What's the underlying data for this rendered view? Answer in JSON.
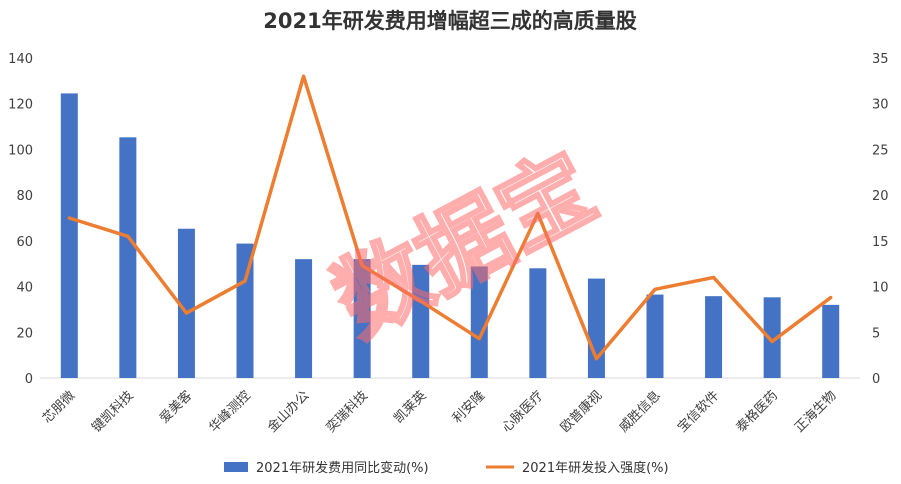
{
  "watermark": "数据宝",
  "colors": {
    "bar": "#4472C4",
    "line": "#ED7D31",
    "grid": "#d9d9d9",
    "watermark": "#ff6b6b"
  },
  "chart_data": {
    "type": "bar",
    "title": "2021年研发费用增幅超三成的高质量股",
    "categories": [
      "芯朋微",
      "键凯科技",
      "爱美客",
      "华峰测控",
      "金山办公",
      "奕瑞科技",
      "凯莱英",
      "利安隆",
      "心脉医疗",
      "欧普康视",
      "威胜信息",
      "宝信软件",
      "泰格医药",
      "正海生物"
    ],
    "series": [
      {
        "name": "2021年研发费用同比变动(%)",
        "type": "bar",
        "axis": "left",
        "values": [
          124.5,
          105.3,
          65.3,
          58.8,
          52.0,
          52.0,
          49.5,
          48.8,
          48.0,
          43.5,
          36.5,
          35.8,
          35.3,
          32.0
        ]
      },
      {
        "name": "2021年研发投入强度(%)",
        "type": "line",
        "axis": "right",
        "values": [
          17.5,
          15.5,
          7.1,
          10.6,
          33.0,
          12.3,
          8.4,
          4.3,
          18.0,
          2.1,
          9.7,
          11.0,
          4.0,
          8.8
        ]
      }
    ],
    "y_left": {
      "min": 0,
      "max": 140,
      "ticks": [
        "0",
        "20",
        "40",
        "60",
        "80",
        "100",
        "120",
        "140"
      ]
    },
    "y_right": {
      "min": 0,
      "max": 35,
      "ticks": [
        "0",
        "5",
        "10",
        "15",
        "20",
        "25",
        "30",
        "35"
      ]
    },
    "grid": false,
    "legend_position": "bottom"
  }
}
